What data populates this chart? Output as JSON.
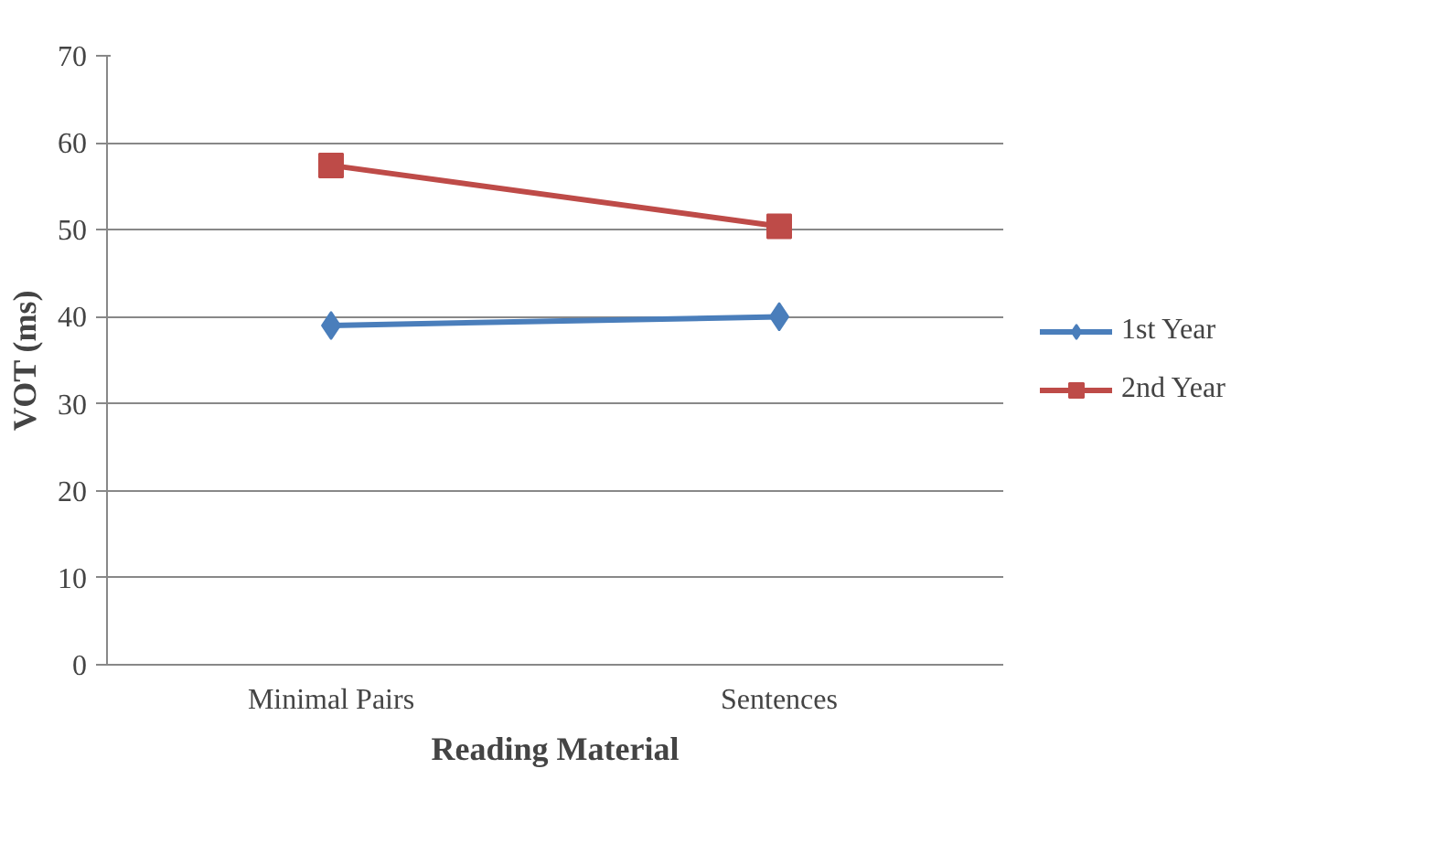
{
  "chart_data": {
    "type": "line",
    "xlabel": "Reading Material",
    "ylabel": "VOT (ms)",
    "categories": [
      "Minimal Pairs",
      "Sentences"
    ],
    "series": [
      {
        "name": "1st Year",
        "color": "#4a7ebb",
        "values": [
          39,
          40
        ],
        "marker": "diamond"
      },
      {
        "name": "2nd Year",
        "color": "#be4b48",
        "values": [
          57.4,
          50.4
        ],
        "marker": "square"
      }
    ],
    "ylim": [
      0,
      70
    ],
    "yticks": [
      0,
      10,
      20,
      30,
      40,
      50,
      60,
      70
    ],
    "grid": "y",
    "legend": "right"
  }
}
